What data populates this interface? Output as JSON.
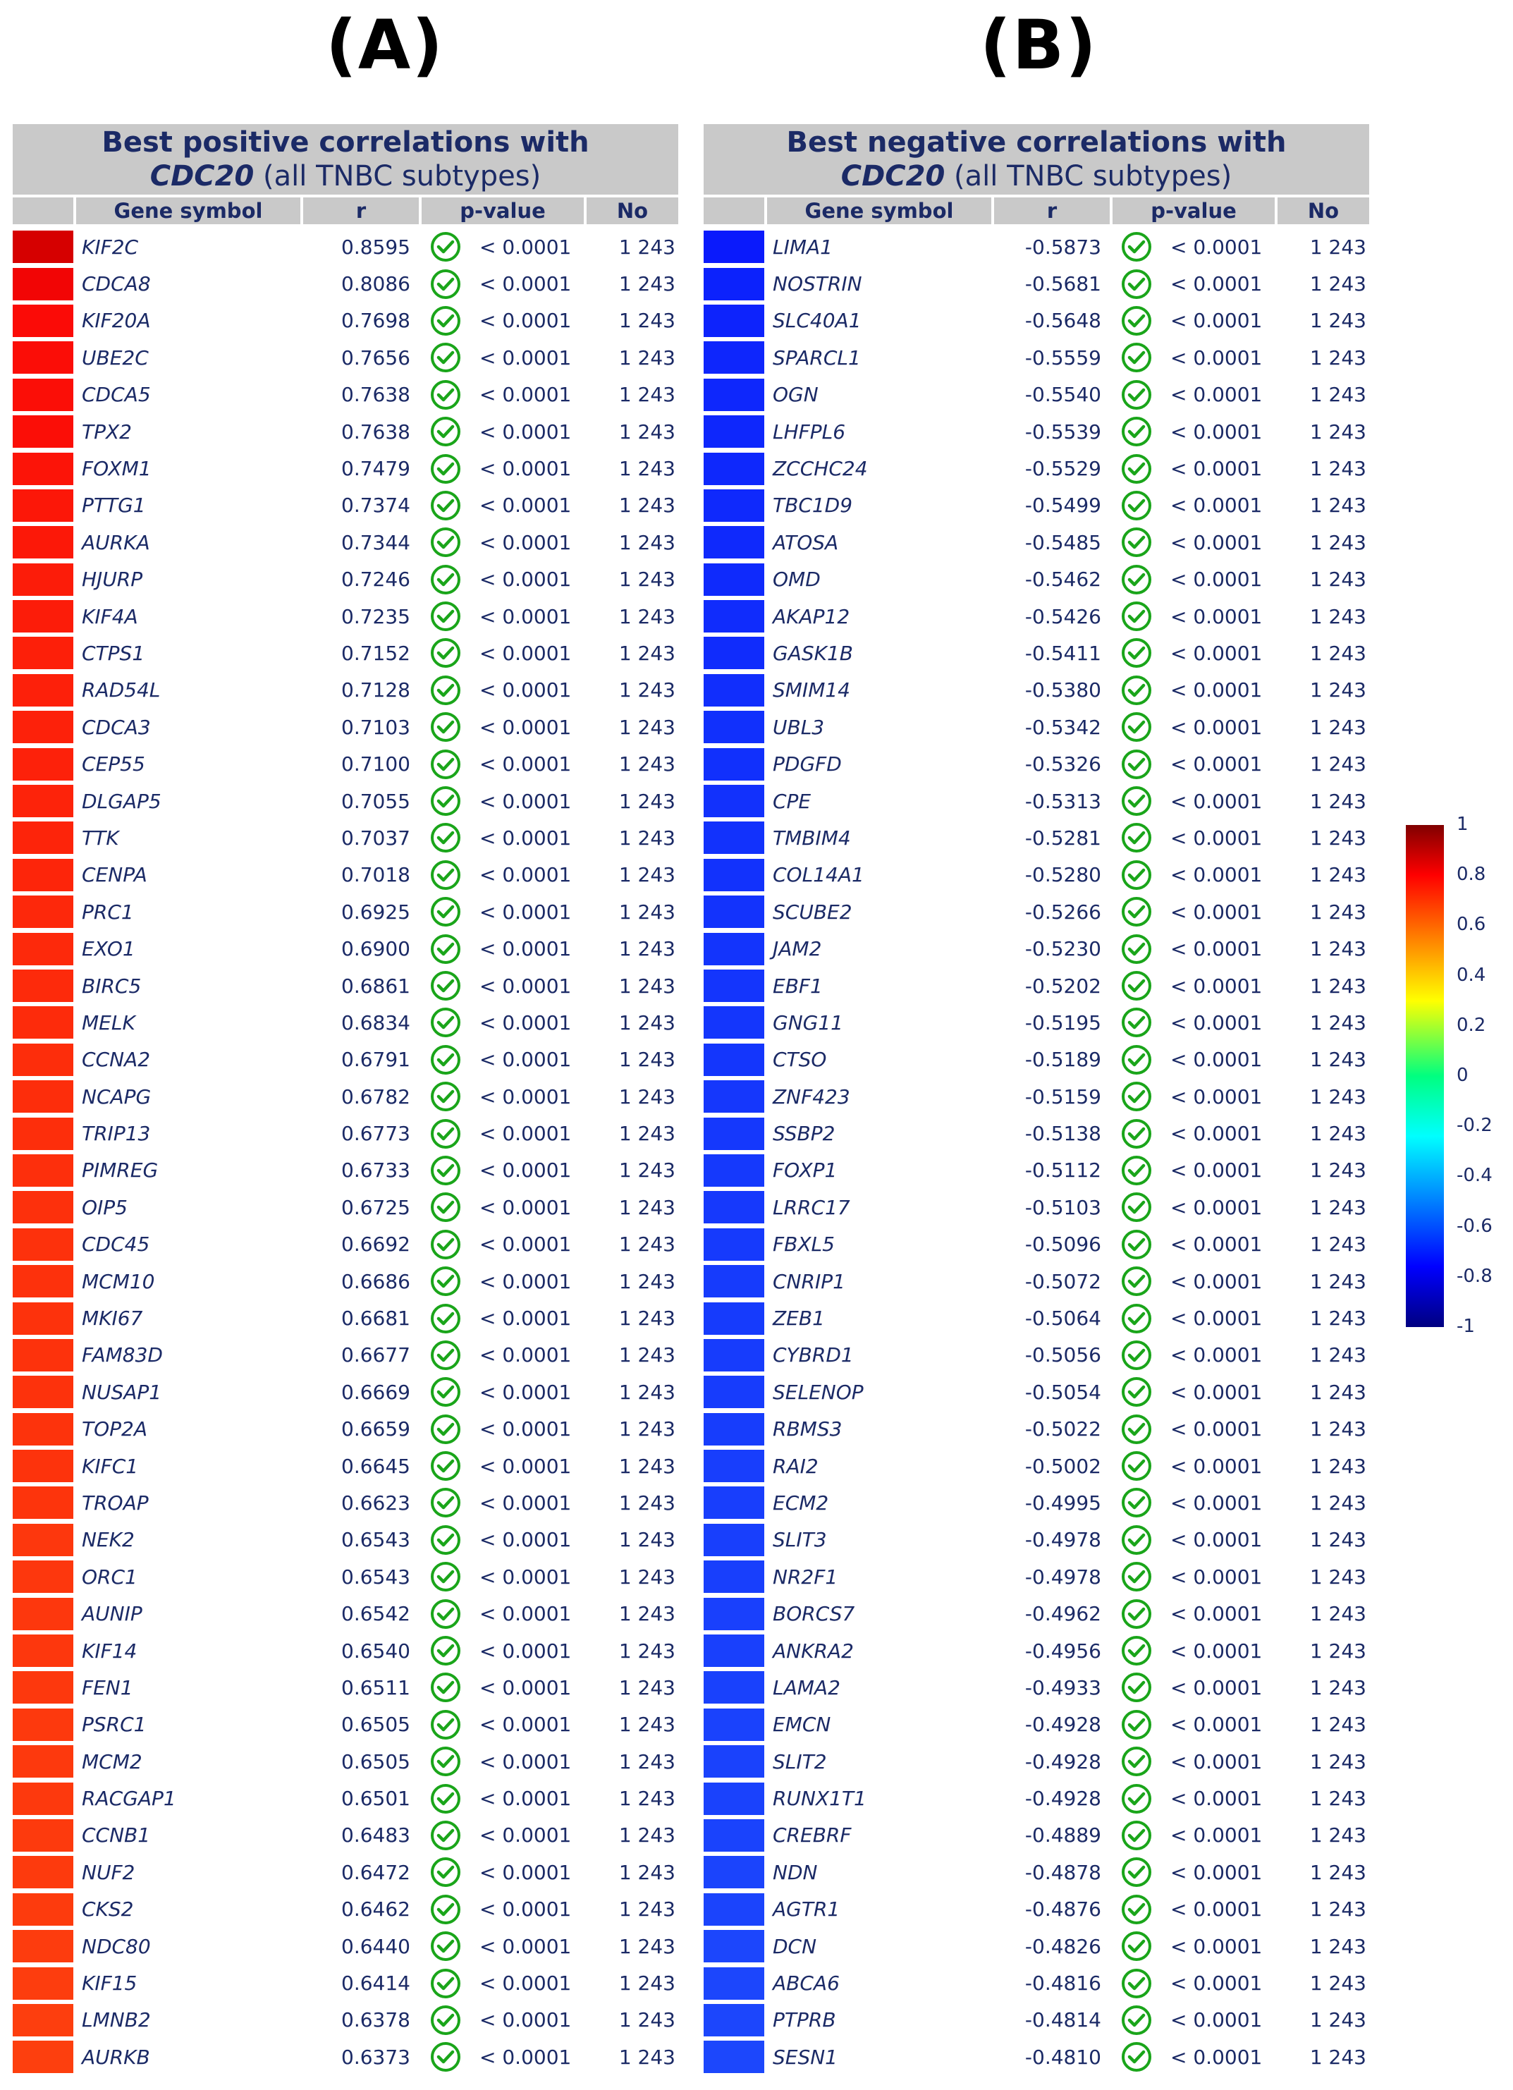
{
  "panels": {
    "a": {
      "label": "(A)",
      "title_line1": "Best positive correlations with",
      "title_gene": "CDC20",
      "title_rest": " (all TNBC subtypes)"
    },
    "b": {
      "label": "(B)",
      "title_line1": "Best negative correlations with",
      "title_gene": "CDC20",
      "title_rest": " (all TNBC subtypes)"
    }
  },
  "columns": {
    "gene": "Gene symbol",
    "r": "r",
    "p": "p-value",
    "no": "No"
  },
  "p_value_text": "< 0.0001",
  "n_text": "1 243",
  "check_color": "#1aa51a",
  "positive_rows": [
    {
      "gene": "KIF2C",
      "r": "0.8595",
      "color": "#d60000"
    },
    {
      "gene": "CDCA8",
      "r": "0.8086",
      "color": "#f20505"
    },
    {
      "gene": "KIF20A",
      "r": "0.7698",
      "color": "#fb0b07"
    },
    {
      "gene": "UBE2C",
      "r": "0.7656",
      "color": "#fb0d07"
    },
    {
      "gene": "CDCA5",
      "r": "0.7638",
      "color": "#fb0e07"
    },
    {
      "gene": "TPX2",
      "r": "0.7638",
      "color": "#fb0e07"
    },
    {
      "gene": "FOXM1",
      "r": "0.7479",
      "color": "#fc1408"
    },
    {
      "gene": "PTTG1",
      "r": "0.7374",
      "color": "#fc1708"
    },
    {
      "gene": "AURKA",
      "r": "0.7344",
      "color": "#fc1808"
    },
    {
      "gene": "HJURP",
      "r": "0.7246",
      "color": "#fc1c09"
    },
    {
      "gene": "KIF4A",
      "r": "0.7235",
      "color": "#fc1c09"
    },
    {
      "gene": "CTPS1",
      "r": "0.7152",
      "color": "#fd1f09"
    },
    {
      "gene": "RAD54L",
      "r": "0.7128",
      "color": "#fd200a"
    },
    {
      "gene": "CDCA3",
      "r": "0.7103",
      "color": "#fd210a"
    },
    {
      "gene": "CEP55",
      "r": "0.7100",
      "color": "#fd210a"
    },
    {
      "gene": "DLGAP5",
      "r": "0.7055",
      "color": "#fd230a"
    },
    {
      "gene": "TTK",
      "r": "0.7037",
      "color": "#fd240a"
    },
    {
      "gene": "CENPA",
      "r": "0.7018",
      "color": "#fd250a"
    },
    {
      "gene": "PRC1",
      "r": "0.6925",
      "color": "#fd280b"
    },
    {
      "gene": "EXO1",
      "r": "0.6900",
      "color": "#fd290b"
    },
    {
      "gene": "BIRC5",
      "r": "0.6861",
      "color": "#fd2a0b"
    },
    {
      "gene": "MELK",
      "r": "0.6834",
      "color": "#fd2b0b"
    },
    {
      "gene": "CCNA2",
      "r": "0.6791",
      "color": "#fd2d0b"
    },
    {
      "gene": "NCAPG",
      "r": "0.6782",
      "color": "#fd2d0b"
    },
    {
      "gene": "TRIP13",
      "r": "0.6773",
      "color": "#fd2e0b"
    },
    {
      "gene": "PIMREG",
      "r": "0.6733",
      "color": "#fd2f0c"
    },
    {
      "gene": "OIP5",
      "r": "0.6725",
      "color": "#fd300c"
    },
    {
      "gene": "CDC45",
      "r": "0.6692",
      "color": "#fd310c"
    },
    {
      "gene": "MCM10",
      "r": "0.6686",
      "color": "#fd310c"
    },
    {
      "gene": "MKI67",
      "r": "0.6681",
      "color": "#fd320c"
    },
    {
      "gene": "FAM83D",
      "r": "0.6677",
      "color": "#fd320c"
    },
    {
      "gene": "NUSAP1",
      "r": "0.6669",
      "color": "#fd320c"
    },
    {
      "gene": "TOP2A",
      "r": "0.6659",
      "color": "#fd330c"
    },
    {
      "gene": "KIFC1",
      "r": "0.6645",
      "color": "#fd330c"
    },
    {
      "gene": "TROAP",
      "r": "0.6623",
      "color": "#fd340c"
    },
    {
      "gene": "NEK2",
      "r": "0.6543",
      "color": "#fd370d"
    },
    {
      "gene": "ORC1",
      "r": "0.6543",
      "color": "#fd370d"
    },
    {
      "gene": "AUNIP",
      "r": "0.6542",
      "color": "#fd370d"
    },
    {
      "gene": "KIF14",
      "r": "0.6540",
      "color": "#fd370d"
    },
    {
      "gene": "FEN1",
      "r": "0.6511",
      "color": "#fd380d"
    },
    {
      "gene": "PSRC1",
      "r": "0.6505",
      "color": "#fd390d"
    },
    {
      "gene": "MCM2",
      "r": "0.6505",
      "color": "#fd390d"
    },
    {
      "gene": "RACGAP1",
      "r": "0.6501",
      "color": "#fd390d"
    },
    {
      "gene": "CCNB1",
      "r": "0.6483",
      "color": "#fd3a0d"
    },
    {
      "gene": "NUF2",
      "r": "0.6472",
      "color": "#fd3a0d"
    },
    {
      "gene": "CKS2",
      "r": "0.6462",
      "color": "#fd3b0d"
    },
    {
      "gene": "NDC80",
      "r": "0.6440",
      "color": "#fd3c0e"
    },
    {
      "gene": "KIF15",
      "r": "0.6414",
      "color": "#fd3d0e"
    },
    {
      "gene": "LMNB2",
      "r": "0.6378",
      "color": "#fd3e0e"
    },
    {
      "gene": "AURKB",
      "r": "0.6373",
      "color": "#fd3f0e"
    }
  ],
  "negative_rows": [
    {
      "gene": "LIMA1",
      "r": "-0.5873",
      "color": "#0a1afc"
    },
    {
      "gene": "NOSTRIN",
      "r": "-0.5681",
      "color": "#0c22fc"
    },
    {
      "gene": "SLC40A1",
      "r": "-0.5648",
      "color": "#0d23fc"
    },
    {
      "gene": "SPARCL1",
      "r": "-0.5559",
      "color": "#0e26fc"
    },
    {
      "gene": "OGN",
      "r": "-0.5540",
      "color": "#0e27fc"
    },
    {
      "gene": "LHFPL6",
      "r": "-0.5539",
      "color": "#0e27fc"
    },
    {
      "gene": "ZCCHC24",
      "r": "-0.5529",
      "color": "#0e28fc"
    },
    {
      "gene": "TBC1D9",
      "r": "-0.5499",
      "color": "#0f29fc"
    },
    {
      "gene": "ATOSA",
      "r": "-0.5485",
      "color": "#0f29fc"
    },
    {
      "gene": "OMD",
      "r": "-0.5462",
      "color": "#0f2afc"
    },
    {
      "gene": "AKAP12",
      "r": "-0.5426",
      "color": "#102cfc"
    },
    {
      "gene": "GASK1B",
      "r": "-0.5411",
      "color": "#102cfc"
    },
    {
      "gene": "SMIM14",
      "r": "-0.5380",
      "color": "#112efc"
    },
    {
      "gene": "UBL3",
      "r": "-0.5342",
      "color": "#1130fc"
    },
    {
      "gene": "PDGFD",
      "r": "-0.5326",
      "color": "#1130fc"
    },
    {
      "gene": "CPE",
      "r": "-0.5313",
      "color": "#1231fc"
    },
    {
      "gene": "TMBIM4",
      "r": "-0.5281",
      "color": "#1232fc"
    },
    {
      "gene": "COL14A1",
      "r": "-0.5280",
      "color": "#1232fc"
    },
    {
      "gene": "SCUBE2",
      "r": "-0.5266",
      "color": "#1333fc"
    },
    {
      "gene": "JAM2",
      "r": "-0.5230",
      "color": "#1334fc"
    },
    {
      "gene": "EBF1",
      "r": "-0.5202",
      "color": "#1435fc"
    },
    {
      "gene": "GNG11",
      "r": "-0.5195",
      "color": "#1436fc"
    },
    {
      "gene": "CTSO",
      "r": "-0.5189",
      "color": "#1436fc"
    },
    {
      "gene": "ZNF423",
      "r": "-0.5159",
      "color": "#1537fc"
    },
    {
      "gene": "SSBP2",
      "r": "-0.5138",
      "color": "#1538fc"
    },
    {
      "gene": "FOXP1",
      "r": "-0.5112",
      "color": "#1539fc"
    },
    {
      "gene": "LRRC17",
      "r": "-0.5103",
      "color": "#1639fc"
    },
    {
      "gene": "FBXL5",
      "r": "-0.5096",
      "color": "#163afc"
    },
    {
      "gene": "CNRIP1",
      "r": "-0.5072",
      "color": "#163bfc"
    },
    {
      "gene": "ZEB1",
      "r": "-0.5064",
      "color": "#163bfc"
    },
    {
      "gene": "CYBRD1",
      "r": "-0.5056",
      "color": "#173cfc"
    },
    {
      "gene": "SELENOP",
      "r": "-0.5054",
      "color": "#173cfc"
    },
    {
      "gene": "RBMS3",
      "r": "-0.5022",
      "color": "#173dfc"
    },
    {
      "gene": "RAI2",
      "r": "-0.5002",
      "color": "#183efc"
    },
    {
      "gene": "ECM2",
      "r": "-0.4995",
      "color": "#183efc"
    },
    {
      "gene": "SLIT3",
      "r": "-0.4978",
      "color": "#183ffc"
    },
    {
      "gene": "NR2F1",
      "r": "-0.4978",
      "color": "#183ffc"
    },
    {
      "gene": "BORCS7",
      "r": "-0.4962",
      "color": "#1940fc"
    },
    {
      "gene": "ANKRA2",
      "r": "-0.4956",
      "color": "#1940fc"
    },
    {
      "gene": "LAMA2",
      "r": "-0.4933",
      "color": "#1941fc"
    },
    {
      "gene": "EMCN",
      "r": "-0.4928",
      "color": "#1a42fc"
    },
    {
      "gene": "SLIT2",
      "r": "-0.4928",
      "color": "#1a42fc"
    },
    {
      "gene": "RUNX1T1",
      "r": "-0.4928",
      "color": "#1a42fc"
    },
    {
      "gene": "CREBRF",
      "r": "-0.4889",
      "color": "#1a43fc"
    },
    {
      "gene": "NDN",
      "r": "-0.4878",
      "color": "#1b44fc"
    },
    {
      "gene": "AGTR1",
      "r": "-0.4876",
      "color": "#1b44fc"
    },
    {
      "gene": "DCN",
      "r": "-0.4826",
      "color": "#1c46fc"
    },
    {
      "gene": "ABCA6",
      "r": "-0.4816",
      "color": "#1c46fc"
    },
    {
      "gene": "PTPRB",
      "r": "-0.4814",
      "color": "#1c46fc"
    },
    {
      "gene": "SESN1",
      "r": "-0.4810",
      "color": "#1c47fc"
    }
  ],
  "colorbar": {
    "ticks": [
      "1",
      "0.8",
      "0.6",
      "0.4",
      "0.2",
      "0",
      "-0.2",
      "-0.4",
      "-0.6",
      "-0.8",
      "-1"
    ],
    "values": [
      1,
      0.8,
      0.6,
      0.4,
      0.2,
      0,
      -0.2,
      -0.4,
      -0.6,
      -0.8,
      -1
    ]
  }
}
